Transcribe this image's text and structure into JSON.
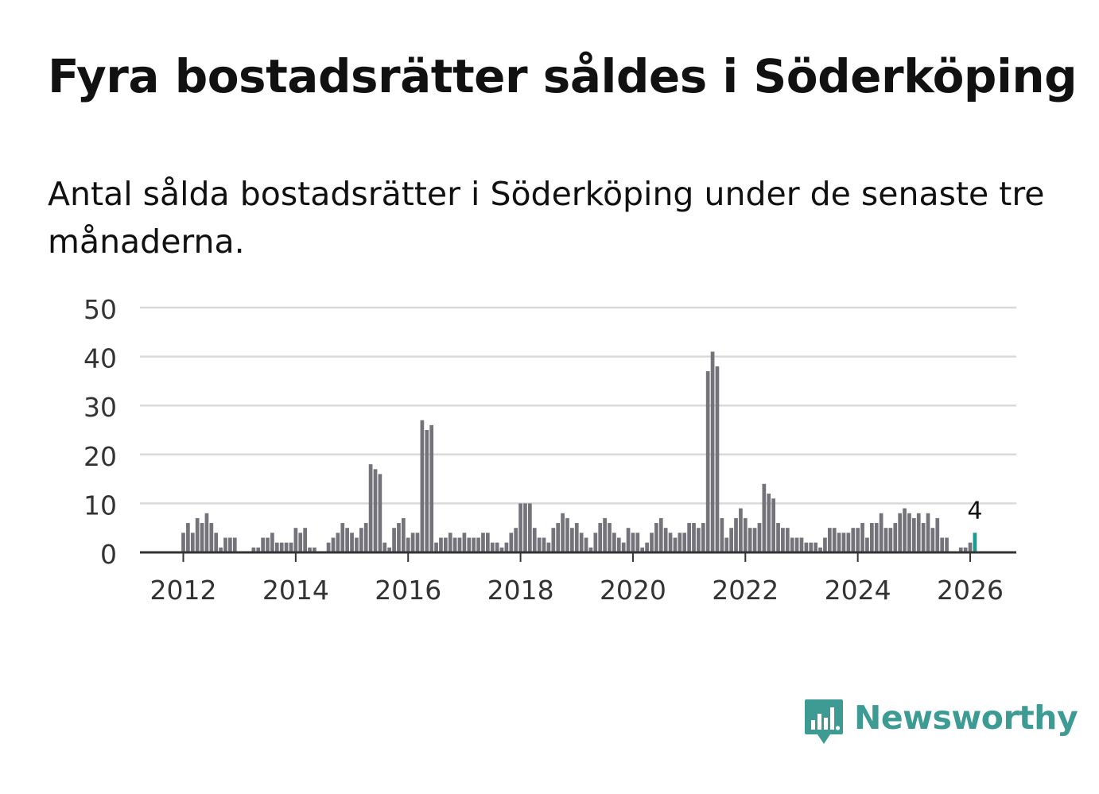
{
  "title": "Fyra bostadsrätter såldes i Söderköping",
  "subtitle": "Antal sålda bostadsrätter i Söderköping under de senaste tre månaderna.",
  "brand": {
    "name": "Newsworthy",
    "icon": "newsworthy-logo-icon",
    "color": "#3d9b93"
  },
  "colors": {
    "bar": "#74737a",
    "highlight": "#1a9b92",
    "grid": "#d9d9d9",
    "axis": "#333333",
    "text": "#111111",
    "tick": "#333333"
  },
  "chart_data": {
    "type": "bar",
    "title": "Fyra bostadsrätter såldes i Söderköping",
    "xlabel": "",
    "ylabel": "",
    "ylim": [
      0,
      50
    ],
    "yticks": [
      0,
      10,
      20,
      30,
      40,
      50
    ],
    "xticks": [
      {
        "label": "2012",
        "index": 0
      },
      {
        "label": "2014",
        "index": 24
      },
      {
        "label": "2016",
        "index": 48
      },
      {
        "label": "2018",
        "index": 72
      },
      {
        "label": "2020",
        "index": 96
      },
      {
        "label": "2022",
        "index": 120
      },
      {
        "label": "2024",
        "index": 144
      },
      {
        "label": "2026",
        "index": 168
      }
    ],
    "start": "2012-01",
    "end": "2026-02",
    "highlight_index": 169,
    "highlight_label": "4",
    "values": [
      4,
      6,
      4,
      7,
      6,
      8,
      6,
      4,
      1,
      3,
      3,
      3,
      0,
      0,
      0,
      1,
      1,
      3,
      3,
      4,
      2,
      2,
      2,
      2,
      5,
      4,
      5,
      1,
      1,
      0,
      0,
      2,
      3,
      4,
      6,
      5,
      4,
      3,
      5,
      6,
      18,
      17,
      16,
      2,
      1,
      5,
      6,
      7,
      3,
      4,
      4,
      27,
      25,
      26,
      2,
      3,
      3,
      4,
      3,
      3,
      4,
      3,
      3,
      3,
      4,
      4,
      2,
      2,
      1,
      2,
      4,
      5,
      10,
      10,
      10,
      5,
      3,
      3,
      2,
      5,
      6,
      8,
      7,
      5,
      6,
      4,
      3,
      1,
      4,
      6,
      7,
      6,
      4,
      3,
      2,
      5,
      4,
      4,
      1,
      2,
      4,
      6,
      7,
      5,
      4,
      3,
      4,
      4,
      6,
      6,
      5,
      6,
      37,
      41,
      38,
      7,
      3,
      5,
      7,
      9,
      7,
      5,
      5,
      6,
      14,
      12,
      11,
      6,
      5,
      5,
      3,
      3,
      3,
      2,
      2,
      2,
      1,
      3,
      5,
      5,
      4,
      4,
      4,
      5,
      5,
      6,
      3,
      6,
      6,
      8,
      5,
      5,
      6,
      8,
      9,
      8,
      7,
      8,
      6,
      8,
      5,
      7,
      3,
      3,
      0,
      0,
      1,
      1,
      2,
      4
    ]
  }
}
